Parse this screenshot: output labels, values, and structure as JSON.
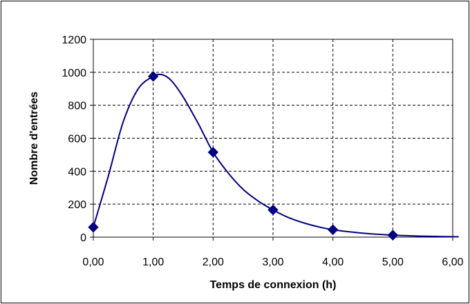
{
  "chart_data": {
    "type": "scatter",
    "xlabel": "Temps de connexion  (h)",
    "ylabel": "Nombre  d'entrées",
    "xlim": [
      0,
      6
    ],
    "ylim": [
      0,
      1200
    ],
    "x_ticks": [
      "0,00",
      "1,00",
      "2,00",
      "3,00",
      "4,00",
      "5,00",
      "6,00"
    ],
    "y_ticks": [
      "0",
      "200",
      "400",
      "600",
      "800",
      "1000",
      "1200"
    ],
    "grid": true,
    "legend": "none",
    "series": [
      {
        "marker": "diamond",
        "line": "smooth",
        "color": "#000080",
        "points": [
          {
            "x": 0,
            "y": 60
          },
          {
            "x": 1,
            "y": 975
          },
          {
            "x": 2,
            "y": 515
          },
          {
            "x": 3,
            "y": 165
          },
          {
            "x": 4,
            "y": 45
          },
          {
            "x": 5,
            "y": 12
          }
        ]
      }
    ],
    "curve": [
      {
        "x": 0,
        "y": 60
      },
      {
        "x": 0.25,
        "y": 370
      },
      {
        "x": 0.5,
        "y": 700
      },
      {
        "x": 0.75,
        "y": 900
      },
      {
        "x": 1,
        "y": 975
      },
      {
        "x": 1.15,
        "y": 985
      },
      {
        "x": 1.3,
        "y": 950
      },
      {
        "x": 1.5,
        "y": 850
      },
      {
        "x": 1.75,
        "y": 690
      },
      {
        "x": 2,
        "y": 515
      },
      {
        "x": 2.25,
        "y": 390
      },
      {
        "x": 2.5,
        "y": 290
      },
      {
        "x": 2.75,
        "y": 220
      },
      {
        "x": 3,
        "y": 165
      },
      {
        "x": 3.25,
        "y": 120
      },
      {
        "x": 3.5,
        "y": 88
      },
      {
        "x": 3.75,
        "y": 63
      },
      {
        "x": 4,
        "y": 45
      },
      {
        "x": 4.5,
        "y": 24
      },
      {
        "x": 5,
        "y": 12
      },
      {
        "x": 5.5,
        "y": 6
      },
      {
        "x": 6.1,
        "y": 2
      }
    ]
  }
}
